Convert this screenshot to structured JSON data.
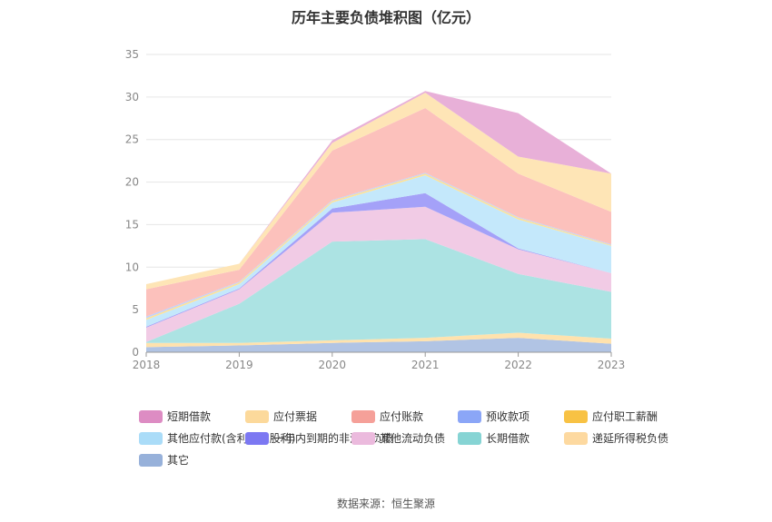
{
  "title": "历年主要负债堆积图（亿元）",
  "source": "数据来源：恒生聚源",
  "chart_data": {
    "type": "area",
    "stacked": true,
    "x": [
      "2018",
      "2019",
      "2020",
      "2021",
      "2022",
      "2023"
    ],
    "ylim": [
      0,
      35
    ],
    "yticks": [
      0,
      5,
      10,
      15,
      20,
      25,
      30,
      35
    ],
    "grid": true,
    "legend_position": "bottom",
    "series": [
      {
        "name": "其它",
        "color": "#b1c4e4",
        "values": [
          0.6,
          0.8,
          1.1,
          1.3,
          1.7,
          1.0
        ]
      },
      {
        "name": "递延所得税负债",
        "color": "#ffe2ad",
        "values": [
          0.5,
          0.3,
          0.3,
          0.4,
          0.6,
          0.6
        ]
      },
      {
        "name": "长期借款",
        "color": "#ace3e3",
        "values": [
          0.1,
          4.6,
          11.6,
          11.6,
          6.9,
          5.5
        ]
      },
      {
        "name": "其他流动负债",
        "color": "#f1cbe5",
        "values": [
          1.7,
          1.7,
          3.4,
          3.8,
          2.9,
          2.2
        ]
      },
      {
        "name": "一年内到期的非流动负债",
        "color": "#a4a1f8",
        "values": [
          0.1,
          0.1,
          0.5,
          1.6,
          0.1,
          0.0
        ]
      },
      {
        "name": "其他应付款(含利息和股利)",
        "color": "#c4e8fb",
        "values": [
          0.8,
          0.5,
          0.7,
          2.1,
          3.4,
          3.2
        ]
      },
      {
        "name": "应付职工薪酬",
        "color": "#fce29a",
        "values": [
          0.2,
          0.2,
          0.2,
          0.2,
          0.2,
          0.1
        ]
      },
      {
        "name": "预收款项",
        "color": "#c3d0fb",
        "values": [
          0.2,
          0.1,
          0.1,
          0.1,
          0.1,
          0.1
        ]
      },
      {
        "name": "应付账款",
        "color": "#fcc1bc",
        "values": [
          3.2,
          1.4,
          5.8,
          7.6,
          5.1,
          3.8
        ]
      },
      {
        "name": "应付票据",
        "color": "#fee5b6",
        "values": [
          0.6,
          0.7,
          0.9,
          1.8,
          2.0,
          4.5
        ]
      },
      {
        "name": "短期借款",
        "color": "#e8b0d8",
        "values": [
          0.0,
          0.0,
          0.3,
          0.2,
          5.1,
          0.0
        ]
      }
    ]
  },
  "legend": [
    {
      "label": "短期借款",
      "color": "#dd8cc3"
    },
    {
      "label": "应付票据",
      "color": "#fcd99b"
    },
    {
      "label": "应付账款",
      "color": "#f5a099"
    },
    {
      "label": "预收款项",
      "color": "#8ba6f7"
    },
    {
      "label": "应付职工薪酬",
      "color": "#f8c244"
    },
    {
      "label": "其他应付款(含利息和股利)",
      "color": "#aadcf8"
    },
    {
      "label": "一年内到期的非流动负债",
      "color": "#7c78f2"
    },
    {
      "label": "其他流动负债",
      "color": "#ebbadd"
    },
    {
      "label": "长期借款",
      "color": "#86d4d4"
    },
    {
      "label": "递延所得税负债",
      "color": "#fdd9a0"
    },
    {
      "label": "其它",
      "color": "#97b1da"
    }
  ]
}
